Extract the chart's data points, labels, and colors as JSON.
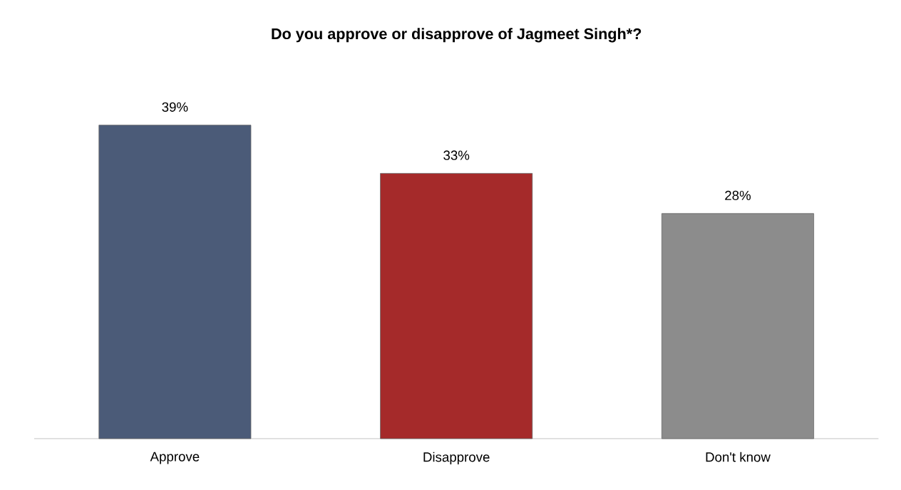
{
  "chart_data": {
    "type": "bar",
    "title": "Do you approve or disapprove of Jagmeet Singh*?",
    "categories": [
      "Approve",
      "Disapprove",
      "Don't know"
    ],
    "values": [
      39,
      33,
      28
    ],
    "value_labels": [
      "39%",
      "33%",
      "28%"
    ],
    "colors": [
      "#4b5b78",
      "#a52a2a",
      "#8c8c8c"
    ]
  }
}
